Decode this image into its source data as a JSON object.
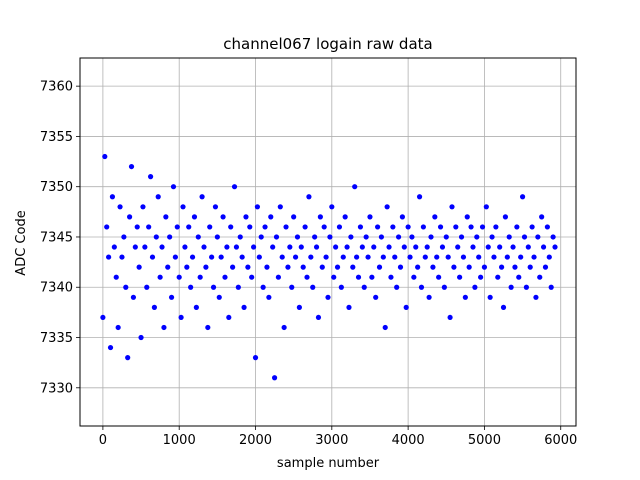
{
  "chart_data": {
    "type": "scatter",
    "title": "channel067 logain raw data",
    "xlabel": "sample number",
    "ylabel": "ADC Code",
    "xlim": [
      -300,
      6200
    ],
    "ylim": [
      7326.2,
      7362.8
    ],
    "x_ticks": [
      0,
      1000,
      2000,
      3000,
      4000,
      5000,
      6000
    ],
    "y_ticks": [
      7330,
      7335,
      7340,
      7345,
      7350,
      7355,
      7360
    ],
    "grid": true,
    "marker_color": "#0000ff",
    "series": [
      {
        "x_start": 0,
        "x_step": 25,
        "values": [
          7337,
          7353,
          7346,
          7343,
          7334,
          7349,
          7344,
          7341,
          7336,
          7348,
          7343,
          7345,
          7340,
          7333,
          7347,
          7352,
          7339,
          7344,
          7346,
          7342,
          7335,
          7348,
          7344,
          7340,
          7346,
          7351,
          7343,
          7338,
          7345,
          7349,
          7341,
          7344,
          7336,
          7347,
          7342,
          7345,
          7339,
          7350,
          7343,
          7346,
          7341,
          7337,
          7348,
          7344,
          7342,
          7346,
          7340,
          7343,
          7347,
          7338,
          7345,
          7341,
          7349,
          7344,
          7342,
          7336,
          7346,
          7343,
          7340,
          7348,
          7345,
          7339,
          7343,
          7347,
          7341,
          7344,
          7337,
          7346,
          7342,
          7350,
          7344,
          7340,
          7345,
          7343,
          7338,
          7347,
          7342,
          7346,
          7341,
          7344,
          7333,
          7348,
          7343,
          7345,
          7340,
          7346,
          7342,
          7339,
          7347,
          7344,
          7331,
          7345,
          7341,
          7348,
          7343,
          7336,
          7346,
          7342,
          7344,
          7340,
          7347,
          7343,
          7345,
          7338,
          7344,
          7342,
          7346,
          7341,
          7349,
          7343,
          7340,
          7345,
          7344,
          7337,
          7347,
          7342,
          7346,
          7343,
          7339,
          7345,
          7348,
          7341,
          7344,
          7342,
          7346,
          7340,
          7343,
          7347,
          7344,
          7338,
          7345,
          7342,
          7350,
          7343,
          7341,
          7346,
          7344,
          7340,
          7345,
          7343,
          7347,
          7341,
          7344,
          7339,
          7346,
          7342,
          7345,
          7343,
          7336,
          7348,
          7344,
          7341,
          7346,
          7343,
          7340,
          7345,
          7342,
          7347,
          7344,
          7338,
          7346,
          7343,
          7345,
          7341,
          7344,
          7342,
          7349,
          7340,
          7346,
          7343,
          7344,
          7339,
          7345,
          7342,
          7347,
          7343,
          7341,
          7346,
          7344,
          7340,
          7345,
          7343,
          7337,
          7348,
          7342,
          7346,
          7344,
          7341,
          7345,
          7343,
          7339,
          7347,
          7342,
          7346,
          7344,
          7340,
          7345,
          7343,
          7341,
          7346,
          7342,
          7348,
          7344,
          7339,
          7345,
          7343,
          7346,
          7341,
          7344,
          7342,
          7338,
          7347,
          7343,
          7345,
          7340,
          7344,
          7342,
          7346,
          7341,
          7343,
          7349,
          7345,
          7340,
          7344,
          7342,
          7346,
          7343,
          7339,
          7345,
          7341,
          7347,
          7344,
          7342,
          7346,
          7343,
          7340,
          7345,
          7344
        ]
      }
    ]
  }
}
